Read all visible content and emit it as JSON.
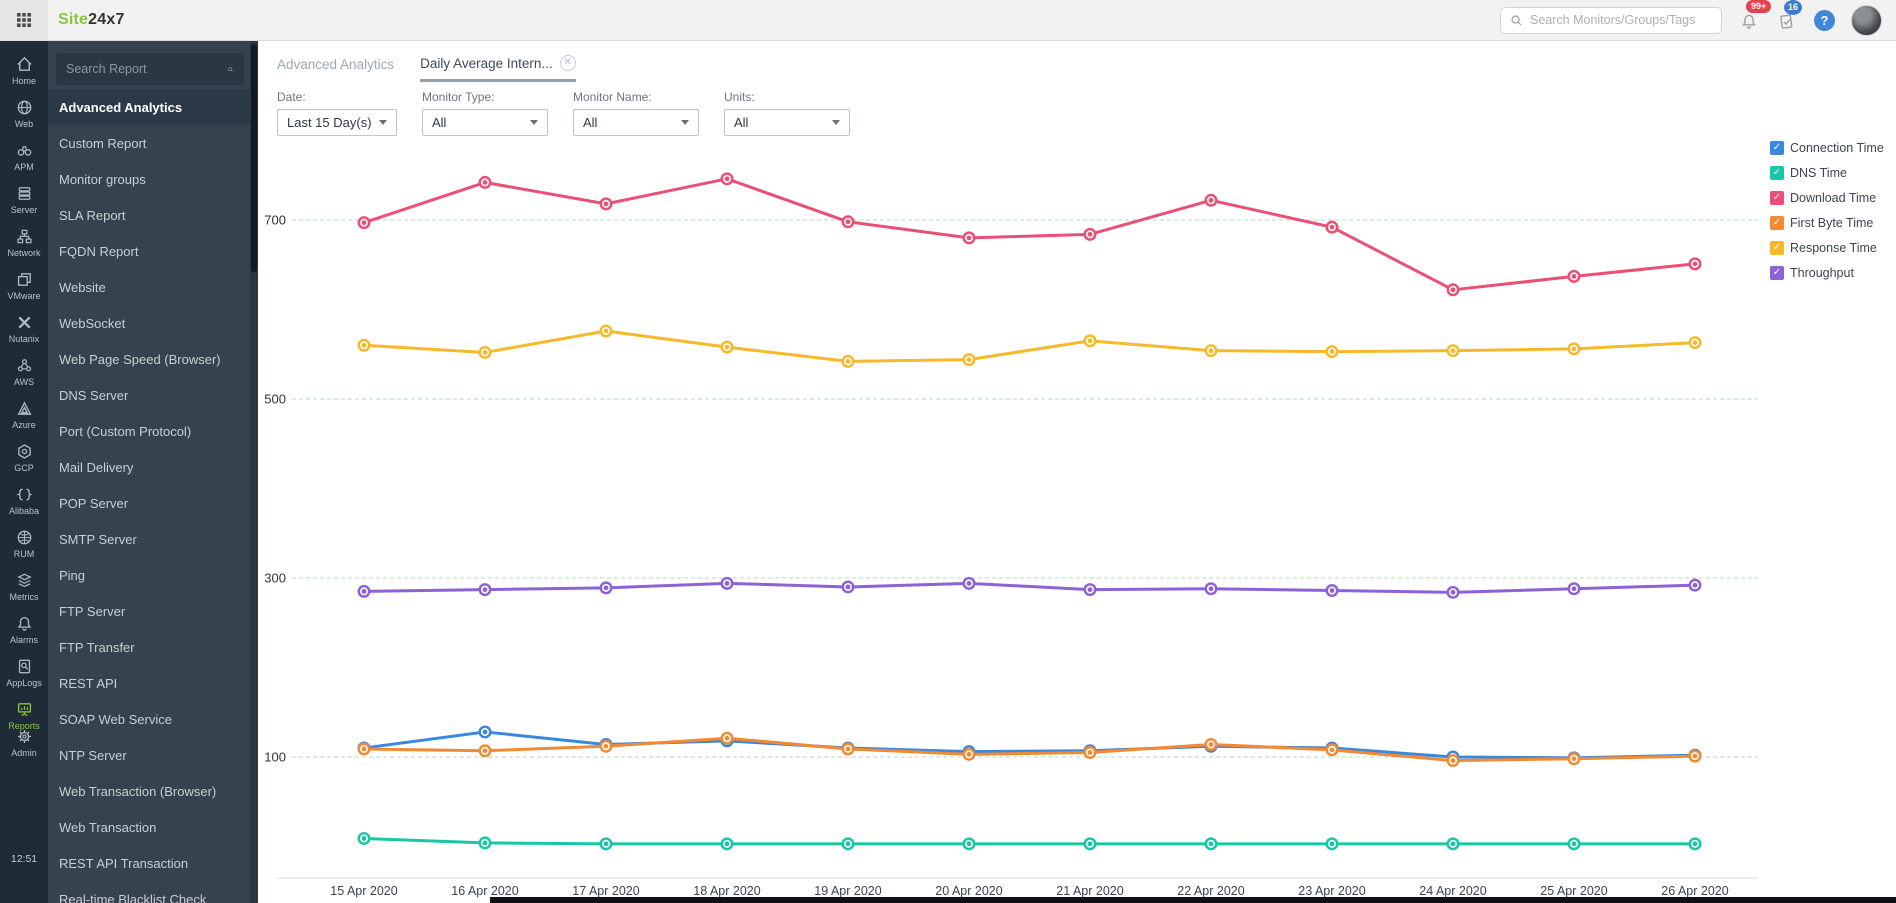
{
  "topbar": {
    "logo_prefix": "Site",
    "logo_suffix": "24x7",
    "search_placeholder": "Search Monitors/Groups/Tags",
    "alerts_badge": "99+",
    "tasks_badge": "16",
    "help_label": "?"
  },
  "rail": {
    "items": [
      {
        "label": "Home",
        "icon": "home"
      },
      {
        "label": "Web",
        "icon": "globe"
      },
      {
        "label": "APM",
        "icon": "binoculars"
      },
      {
        "label": "Server",
        "icon": "server"
      },
      {
        "label": "Network",
        "icon": "network"
      },
      {
        "label": "VMware",
        "icon": "layers"
      },
      {
        "label": "Nutanix",
        "icon": "cross"
      },
      {
        "label": "AWS",
        "icon": "nodes"
      },
      {
        "label": "Azure",
        "icon": "triangle"
      },
      {
        "label": "GCP",
        "icon": "hexagon"
      },
      {
        "label": "Alibaba",
        "icon": "braces"
      },
      {
        "label": "RUM",
        "icon": "globe-grid"
      },
      {
        "label": "Metrics",
        "icon": "sheets"
      },
      {
        "label": "Alarms",
        "icon": "bell"
      },
      {
        "label": "AppLogs",
        "icon": "doc-search"
      },
      {
        "label": "Reports",
        "icon": "board",
        "active": true
      },
      {
        "label": "Admin",
        "icon": "gear",
        "squeeze": true
      }
    ],
    "time": "12:51"
  },
  "sidebar": {
    "search_placeholder": "Search Report",
    "items": [
      {
        "label": "Advanced Analytics",
        "active": true
      },
      {
        "label": "Custom Report"
      },
      {
        "label": "Monitor groups"
      },
      {
        "label": "SLA Report"
      },
      {
        "label": "FQDN Report"
      },
      {
        "label": "Website"
      },
      {
        "label": "WebSocket"
      },
      {
        "label": "Web Page Speed (Browser)"
      },
      {
        "label": "DNS Server"
      },
      {
        "label": "Port (Custom Protocol)"
      },
      {
        "label": "Mail Delivery"
      },
      {
        "label": "POP Server"
      },
      {
        "label": "SMTP Server"
      },
      {
        "label": "Ping"
      },
      {
        "label": "FTP Server"
      },
      {
        "label": "FTP Transfer"
      },
      {
        "label": "REST API"
      },
      {
        "label": "SOAP Web Service"
      },
      {
        "label": "NTP Server"
      },
      {
        "label": "Web Transaction (Browser)"
      },
      {
        "label": "Web Transaction"
      },
      {
        "label": "REST API Transaction"
      },
      {
        "label": "Real-time Blacklist Check"
      }
    ]
  },
  "tabs": [
    {
      "label": "Advanced Analytics",
      "active": false,
      "closable": false
    },
    {
      "label": "Daily Average Intern...",
      "active": true,
      "closable": true,
      "close_glyph": "✕"
    }
  ],
  "filters": [
    {
      "label": "Date:",
      "value": "Last 15 Day(s)"
    },
    {
      "label": "Monitor Type:",
      "value": "All"
    },
    {
      "label": "Monitor Name:",
      "value": "All"
    },
    {
      "label": "Units:",
      "value": "All"
    }
  ],
  "chart_data": {
    "type": "line",
    "title": "",
    "xlabel": "",
    "ylabel": "",
    "categories": [
      "15 Apr 2020",
      "16 Apr 2020",
      "17 Apr 2020",
      "18 Apr 2020",
      "19 Apr 2020",
      "20 Apr 2020",
      "21 Apr 2020",
      "22 Apr 2020",
      "23 Apr 2020",
      "24 Apr 2020",
      "25 Apr 2020",
      "26 Apr 2020"
    ],
    "yticks": [
      100,
      300,
      500,
      700
    ],
    "ylim": [
      -30,
      790
    ],
    "grid": "horizontal-dashed",
    "gridline_color": "#b5dcb8",
    "legend_position": "right",
    "legend_check_glyph": "✓",
    "series": [
      {
        "name": "Connection Time",
        "color": "#3a87dd",
        "values": [
          110,
          128,
          114,
          118,
          110,
          106,
          107,
          112,
          110,
          100,
          99,
          102
        ]
      },
      {
        "name": "DNS Time",
        "color": "#17c7a5",
        "values": [
          9,
          4,
          3,
          3,
          3,
          3,
          3,
          3,
          3,
          3,
          3,
          3
        ]
      },
      {
        "name": "Download Time",
        "color": "#ea5076",
        "values": [
          697,
          742,
          718,
          746,
          698,
          680,
          684,
          722,
          692,
          622,
          637,
          651
        ]
      },
      {
        "name": "First Byte Time",
        "color": "#f08a34",
        "values": [
          109,
          107,
          112,
          121,
          109,
          103,
          105,
          114,
          108,
          96,
          98,
          101
        ]
      },
      {
        "name": "Response Time",
        "color": "#f7b82a",
        "values": [
          560,
          552,
          576,
          558,
          542,
          544,
          565,
          554,
          553,
          554,
          556,
          563
        ]
      },
      {
        "name": "Throughput",
        "color": "#8d62d6",
        "values": [
          285,
          287,
          289,
          294,
          290,
          294,
          287,
          288,
          286,
          284,
          288,
          292
        ]
      }
    ]
  }
}
